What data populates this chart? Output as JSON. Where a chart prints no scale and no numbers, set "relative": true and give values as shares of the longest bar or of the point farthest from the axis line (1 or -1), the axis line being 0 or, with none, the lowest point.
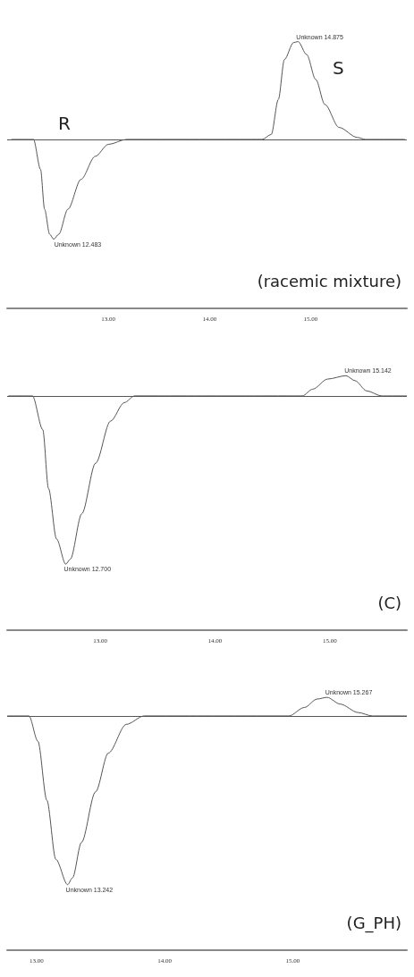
{
  "chart_data": [
    {
      "type": "line",
      "relative": true,
      "color": "#555555",
      "marker": "none",
      "grid": false,
      "tick_labels": "x",
      "x": [
        12.04,
        12.26,
        12.33,
        12.37,
        12.42,
        12.46,
        12.51,
        12.6,
        12.73,
        12.87,
        13.0,
        13.18,
        13.6,
        14.0,
        14.3,
        14.52,
        14.61,
        14.68,
        14.74,
        14.83,
        14.875,
        14.96,
        15.05,
        15.14,
        15.28,
        15.46,
        15.54,
        15.93
      ],
      "values": [
        0,
        0,
        -0.3,
        -0.7,
        -0.95,
        -1,
        -0.95,
        -0.7,
        -0.4,
        -0.17,
        -0.05,
        0,
        0,
        0,
        0,
        0,
        0.05,
        0.4,
        0.8,
        0.97,
        0.98,
        0.85,
        0.6,
        0.35,
        0.12,
        0.02,
        0,
        0
      ],
      "xlim": [
        12.0,
        15.95
      ],
      "xticks": [
        {
          "value": 13,
          "label": "13.00"
        },
        {
          "value": 14,
          "label": "14.00"
        },
        {
          "value": 15,
          "label": "15.00"
        }
      ],
      "ref_lines": [
        {
          "axis": "y",
          "value": 0
        }
      ],
      "annotations": [
        {
          "text": "Unknown 12.483",
          "x": 12.483,
          "y": -1
        },
        {
          "text": "Unknown 14.875",
          "x": 14.875,
          "y": 0.98
        },
        "R",
        "S",
        "(racemic mixture)"
      ]
    },
    {
      "type": "line",
      "relative": true,
      "color": "#555555",
      "marker": "none",
      "grid": false,
      "tick_labels": "x",
      "x": [
        12.2,
        12.41,
        12.5,
        12.55,
        12.62,
        12.7,
        12.74,
        12.84,
        12.96,
        13.09,
        13.21,
        13.3,
        13.7,
        14.2,
        14.76,
        14.85,
        14.98,
        15.14,
        15.22,
        15.32,
        15.45,
        15.67
      ],
      "values": [
        0,
        0,
        -0.2,
        -0.55,
        -0.85,
        -1,
        -0.97,
        -0.7,
        -0.4,
        -0.15,
        -0.04,
        0,
        0,
        0,
        0,
        0.04,
        0.1,
        0.12,
        0.09,
        0.03,
        0,
        0
      ],
      "xlim": [
        12.19,
        15.67
      ],
      "xticks": [
        {
          "value": 13,
          "label": "13.00"
        },
        {
          "value": 14,
          "label": "14.00"
        },
        {
          "value": 15,
          "label": "15.00"
        }
      ],
      "ref_lines": [
        {
          "axis": "y",
          "value": 0
        }
      ],
      "annotations": [
        {
          "text": "Unknown 12.700",
          "x": 12.7,
          "y": -1
        },
        {
          "text": "Unknown 15.142",
          "x": 15.142,
          "y": 0.12
        },
        "(C)"
      ]
    },
    {
      "type": "line",
      "relative": true,
      "color": "#555555",
      "marker": "none",
      "grid": false,
      "tick_labels": "x",
      "x": [
        12.77,
        12.94,
        13.01,
        13.08,
        13.15,
        13.242,
        13.28,
        13.35,
        13.46,
        13.56,
        13.7,
        13.84,
        14.3,
        14.97,
        15.09,
        15.19,
        15.267,
        15.37,
        15.51,
        15.62,
        15.89
      ],
      "values": [
        0,
        0,
        -0.15,
        -0.5,
        -0.85,
        -1,
        -0.96,
        -0.75,
        -0.45,
        -0.22,
        -0.05,
        0,
        0,
        0,
        0.05,
        0.1,
        0.11,
        0.07,
        0.02,
        0,
        0
      ],
      "xlim": [
        12.77,
        15.89
      ],
      "xticks": [
        {
          "value": 13,
          "label": "13.00"
        },
        {
          "value": 14,
          "label": "14.00"
        },
        {
          "value": 15,
          "label": "15.00"
        }
      ],
      "ref_lines": [
        {
          "axis": "y",
          "value": 0
        }
      ],
      "annotations": [
        {
          "text": "Unknown 13.242",
          "x": 13.242,
          "y": -1
        },
        {
          "text": "Unknown 15.267",
          "x": 15.267,
          "y": 0.11
        },
        "(G_PH)"
      ]
    }
  ]
}
